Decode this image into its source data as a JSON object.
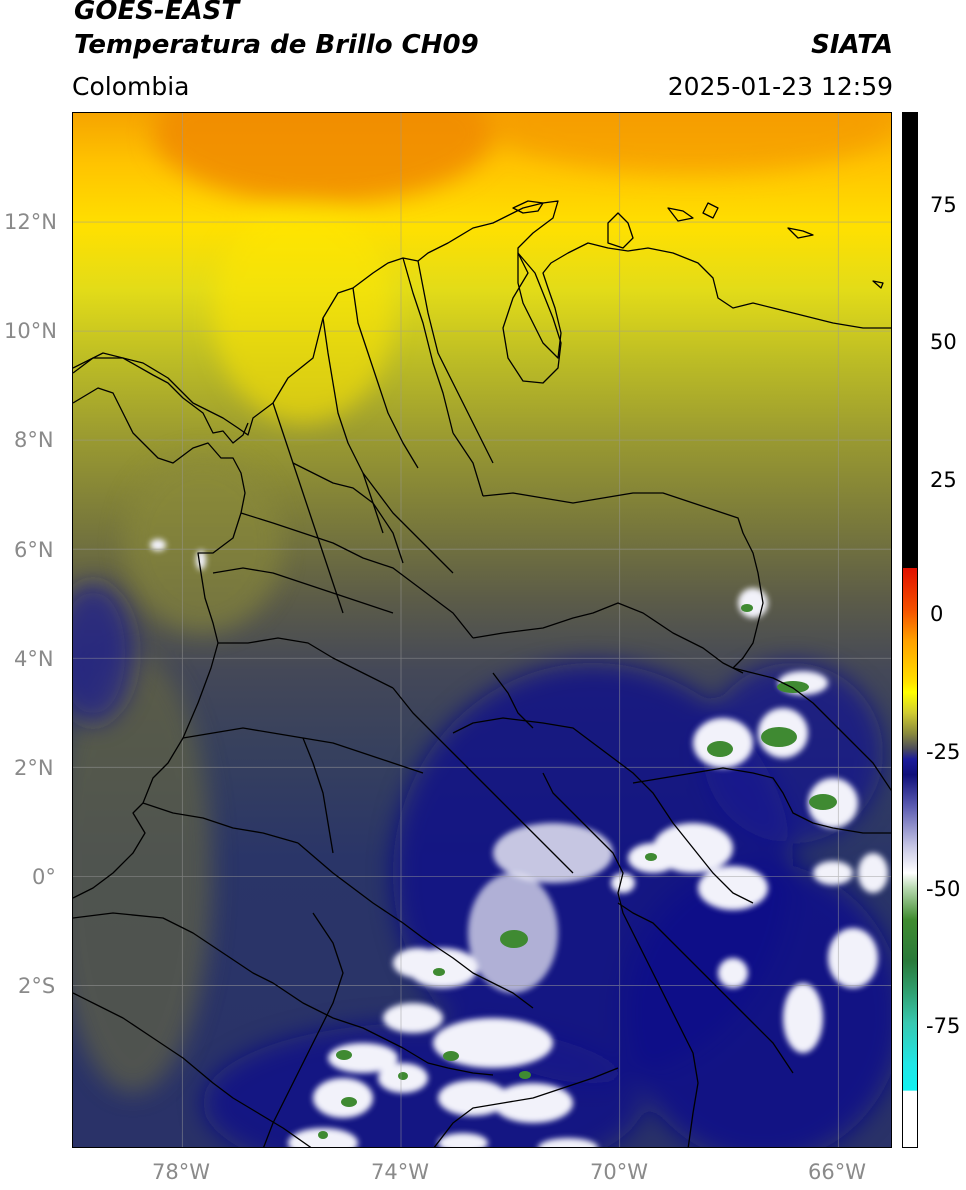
{
  "header": {
    "satellite": "GOES-EAST",
    "product": "Temperatura de Brillo CH09",
    "region": "Colombia",
    "agency": "SIATA",
    "datetime": "2025-01-23 12:59"
  },
  "axes": {
    "lat_ticks": [
      "12°N",
      "10°N",
      "8°N",
      "6°N",
      "4°N",
      "2°N",
      "0°",
      "2°S"
    ],
    "lon_ticks": [
      "78°W",
      "74°W",
      "70°W",
      "66°W"
    ]
  },
  "colorbar": {
    "labels": [
      "75",
      "50",
      "25",
      "0",
      "-25",
      "-50",
      "-75"
    ]
  },
  "map": {
    "extent_lon": [
      -80,
      -65
    ],
    "extent_lat": [
      -5,
      14
    ],
    "background_color": "#2a3268",
    "coast_color": "#000000",
    "grid_color": "#9a9a9a"
  }
}
